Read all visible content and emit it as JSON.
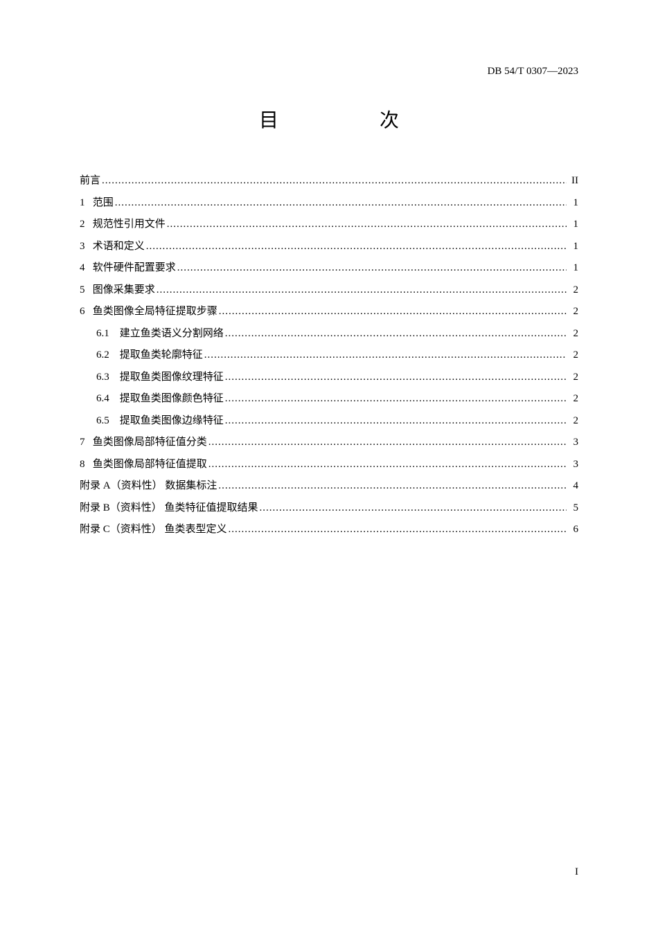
{
  "header": {
    "doc_number": "DB 54/T 0307—2023"
  },
  "title": "目　　次",
  "toc": {
    "entries": [
      {
        "label": "前言",
        "page": "II",
        "indent": false
      },
      {
        "num": "1",
        "label": "范围",
        "page": "1",
        "indent": false
      },
      {
        "num": "2",
        "label": "规范性引用文件",
        "page": "1",
        "indent": false
      },
      {
        "num": "3",
        "label": "术语和定义",
        "page": "1",
        "indent": false
      },
      {
        "num": "4",
        "label": "软件硬件配置要求",
        "page": "1",
        "indent": false
      },
      {
        "num": "5",
        "label": "图像采集要求",
        "page": "2",
        "indent": false
      },
      {
        "num": "6",
        "label": "鱼类图像全局特征提取步骤",
        "page": "2",
        "indent": false
      },
      {
        "subnum": "6.1",
        "label": "建立鱼类语义分割网络",
        "page": "2",
        "indent": true
      },
      {
        "subnum": "6.2",
        "label": "提取鱼类轮廓特征",
        "page": "2",
        "indent": true
      },
      {
        "subnum": "6.3",
        "label": "提取鱼类图像纹理特征",
        "page": "2",
        "indent": true
      },
      {
        "subnum": "6.4",
        "label": "提取鱼类图像颜色特征",
        "page": "2",
        "indent": true
      },
      {
        "subnum": "6.5",
        "label": "提取鱼类图像边缘特征",
        "page": "2",
        "indent": true
      },
      {
        "num": "7",
        "label": "鱼类图像局部特征值分类",
        "page": "3",
        "indent": false
      },
      {
        "num": "8",
        "label": "鱼类图像局部特征值提取",
        "page": "3",
        "indent": false
      },
      {
        "appendix": "附录 A（资料性）",
        "label": "数据集标注",
        "page": "4",
        "indent": false
      },
      {
        "appendix": "附录 B（资料性）",
        "label": "鱼类特征值提取结果",
        "page": "5",
        "indent": false
      },
      {
        "appendix": "附录 C（资料性）",
        "label": "鱼类表型定义",
        "page": "6",
        "indent": false
      }
    ]
  },
  "footer": {
    "page_number": "I"
  }
}
